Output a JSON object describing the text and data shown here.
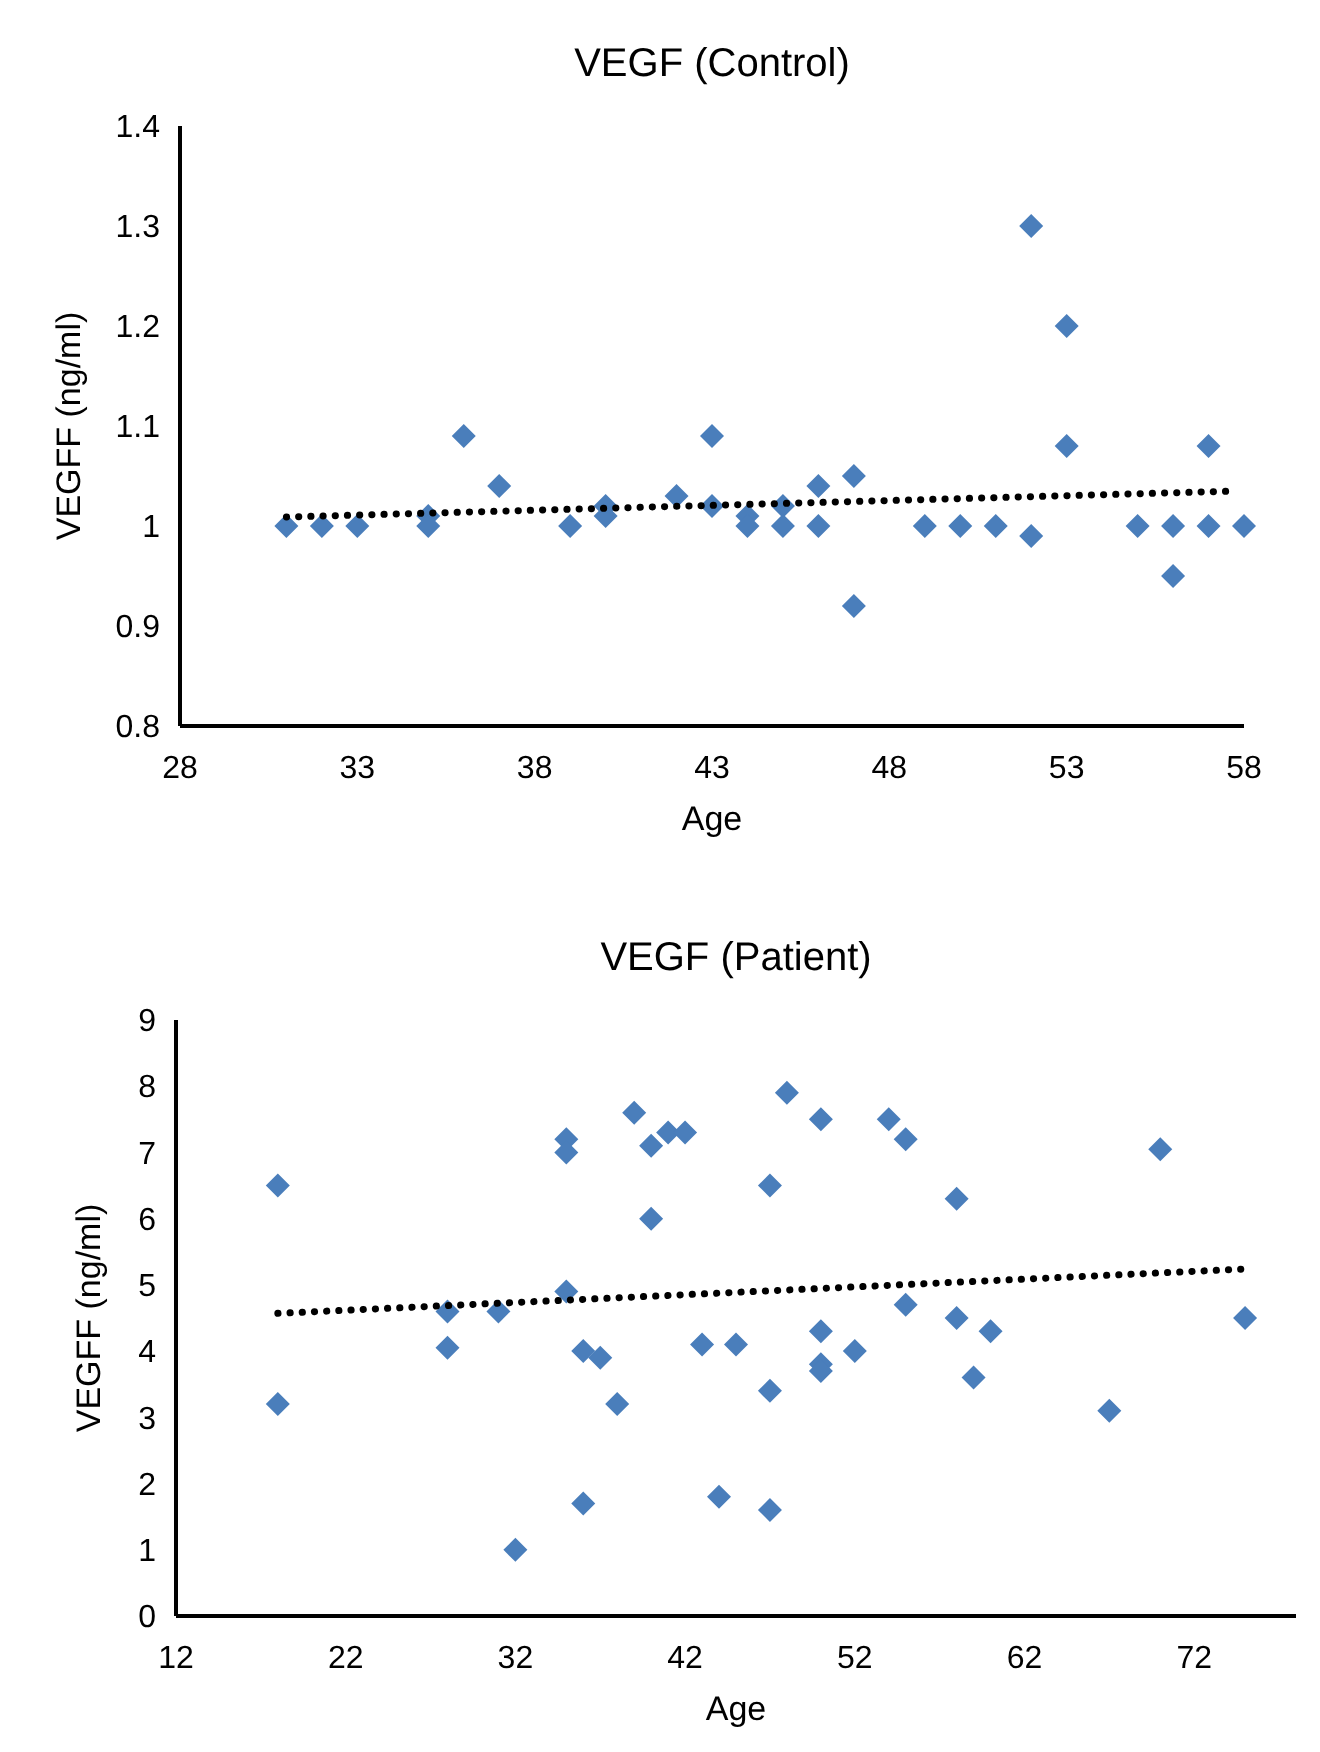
{
  "chart_data": [
    {
      "type": "scatter",
      "title": "VEGF (Control)",
      "xlabel": "Age",
      "ylabel": "VEGFF (ng/ml)",
      "xlim": [
        28,
        58
      ],
      "xticks": [
        28,
        33,
        38,
        43,
        48,
        53,
        58
      ],
      "ylim": [
        0.8,
        1.4
      ],
      "yticks": [
        0.8,
        0.9,
        1,
        1.1,
        1.2,
        1.3,
        1.4
      ],
      "grid": false,
      "marker": "diamond",
      "series": [
        {
          "color": "#4a7ebb",
          "x": [
            31,
            32,
            33,
            35,
            35,
            36,
            37,
            39,
            40,
            40,
            42,
            43,
            43,
            44,
            44,
            45,
            45,
            46,
            46,
            47,
            47,
            49,
            50,
            51,
            52,
            52,
            53,
            53,
            55,
            56,
            56,
            57,
            57,
            58
          ],
          "values": [
            1.0,
            1.0,
            1.0,
            1.01,
            1.0,
            1.09,
            1.04,
            1.0,
            1.02,
            1.01,
            1.03,
            1.09,
            1.02,
            1.01,
            1.0,
            1.02,
            1.0,
            1.04,
            1.0,
            1.05,
            0.92,
            1.0,
            1.0,
            1.0,
            1.3,
            0.99,
            1.2,
            1.08,
            1.0,
            1.0,
            0.95,
            1.08,
            1.0,
            1.0
          ]
        },
        {
          "type": "line",
          "color": "#000000",
          "line_style": "dotted",
          "marker": "none",
          "x": [
            31,
            57.8
          ],
          "values": [
            1.009,
            1.035
          ]
        }
      ]
    },
    {
      "type": "scatter",
      "title": "VEGF (Patient)",
      "xlabel": "Age",
      "ylabel": "VEGFF (ng/ml)",
      "xlim": [
        12,
        78
      ],
      "xticks": [
        12,
        22,
        32,
        42,
        52,
        62,
        72
      ],
      "ylim": [
        0,
        9
      ],
      "yticks": [
        0,
        1,
        2,
        3,
        4,
        5,
        6,
        7,
        8,
        9
      ],
      "grid": false,
      "marker": "diamond",
      "series": [
        {
          "color": "#4a7ebb",
          "x": [
            18,
            18,
            28,
            28,
            31,
            32,
            35,
            35,
            35,
            36,
            36,
            37,
            38,
            39,
            40,
            40,
            41,
            42,
            43,
            44,
            45,
            47,
            47,
            47,
            48,
            50,
            50,
            50,
            50,
            52,
            54,
            55,
            55,
            58,
            58,
            59,
            60,
            67,
            70,
            75
          ],
          "values": [
            6.5,
            3.2,
            4.6,
            4.05,
            4.6,
            1.0,
            7.2,
            7.0,
            4.9,
            4.0,
            1.7,
            3.9,
            3.2,
            7.6,
            7.1,
            6.0,
            7.3,
            7.3,
            4.1,
            1.8,
            4.1,
            6.5,
            3.4,
            1.6,
            7.9,
            7.5,
            4.3,
            3.8,
            3.7,
            4.0,
            7.5,
            7.2,
            4.7,
            6.3,
            4.5,
            3.6,
            4.3,
            3.1,
            7.05,
            4.5
          ]
        },
        {
          "type": "line",
          "color": "#000000",
          "line_style": "dotted",
          "marker": "none",
          "x": [
            18,
            75
          ],
          "values": [
            4.57,
            5.24
          ]
        }
      ]
    }
  ]
}
